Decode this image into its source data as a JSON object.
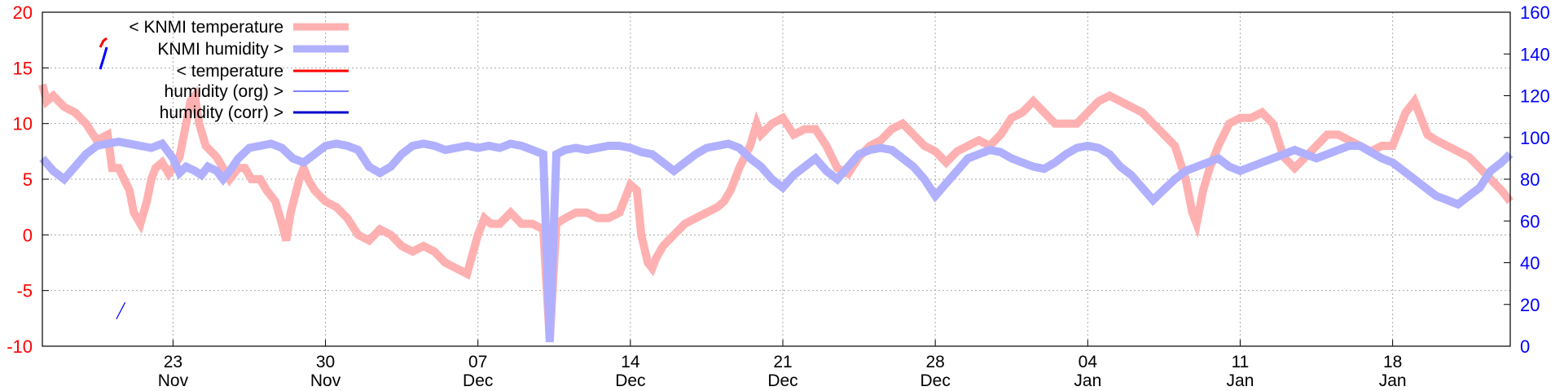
{
  "chart_data": {
    "type": "line",
    "title": "",
    "grid": true,
    "legend_placement": "top-left",
    "y_left": {
      "min": -10,
      "max": 20,
      "ticks": [
        -10,
        -5,
        0,
        5,
        10,
        15,
        20
      ],
      "color": "#ff0000"
    },
    "y_right": {
      "min": 0,
      "max": 160,
      "ticks": [
        0,
        20,
        40,
        60,
        80,
        100,
        120,
        140,
        160
      ],
      "color": "#0000ff"
    },
    "x_range_days": [
      -5,
      62.4
    ],
    "x_ticks": [
      {
        "day": 1,
        "date": "23",
        "month": "Nov"
      },
      {
        "day": 8,
        "date": "30",
        "month": "Nov"
      },
      {
        "day": 15,
        "date": "07",
        "month": "Dec"
      },
      {
        "day": 22,
        "date": "14",
        "month": "Dec"
      },
      {
        "day": 29,
        "date": "21",
        "month": "Dec"
      },
      {
        "day": 36,
        "date": "28",
        "month": "Dec"
      },
      {
        "day": 43,
        "date": "04",
        "month": "Jan"
      },
      {
        "day": 50,
        "date": "11",
        "month": "Jan"
      },
      {
        "day": 57,
        "date": "18",
        "month": "Jan"
      }
    ],
    "legend": [
      {
        "label": "< KNMI temperature",
        "color": "#ffb0b0",
        "width": 9
      },
      {
        "label": "KNMI humidity >",
        "color": "#b0b0ff",
        "width": 9
      },
      {
        "label": "< temperature",
        "color": "#ff0000",
        "width": 3
      },
      {
        "label": "humidity (org) >",
        "color": "#0000ff",
        "width": 1
      },
      {
        "label": "humidity (corr) >",
        "color": "#0000cc",
        "width": 3
      }
    ],
    "series": [
      {
        "name": "< KNMI temperature",
        "axis": "left",
        "color": "#ffb0b0",
        "points": [
          [
            -5,
            13.5
          ],
          [
            -4.8,
            12
          ],
          [
            -4.5,
            12.5
          ],
          [
            -4,
            11.5
          ],
          [
            -3.5,
            11
          ],
          [
            -3,
            10
          ],
          [
            -2.5,
            8.5
          ],
          [
            -2,
            9
          ],
          [
            -1.8,
            6
          ],
          [
            -1.5,
            6
          ],
          [
            -1,
            4
          ],
          [
            -0.8,
            2
          ],
          [
            -0.5,
            1
          ],
          [
            -0.2,
            3
          ],
          [
            0,
            5
          ],
          [
            0.2,
            6
          ],
          [
            0.5,
            6.5
          ],
          [
            0.8,
            5.5
          ],
          [
            1,
            6
          ],
          [
            1.3,
            7
          ],
          [
            1.6,
            10
          ],
          [
            1.8,
            12
          ],
          [
            2,
            12.5
          ],
          [
            2.2,
            10
          ],
          [
            2.5,
            8
          ],
          [
            3,
            7
          ],
          [
            3.3,
            6
          ],
          [
            3.6,
            5
          ],
          [
            4,
            6
          ],
          [
            4.3,
            6
          ],
          [
            4.6,
            5
          ],
          [
            5,
            5
          ],
          [
            5.3,
            4
          ],
          [
            5.7,
            3
          ],
          [
            6,
            1
          ],
          [
            6.2,
            -0.5
          ],
          [
            6.4,
            2
          ],
          [
            6.8,
            5
          ],
          [
            7,
            6
          ],
          [
            7.2,
            5
          ],
          [
            7.5,
            4
          ],
          [
            8,
            3
          ],
          [
            8.5,
            2.5
          ],
          [
            9,
            1.5
          ],
          [
            9.5,
            0
          ],
          [
            10,
            -0.5
          ],
          [
            10.5,
            0.5
          ],
          [
            11,
            0
          ],
          [
            11.5,
            -1
          ],
          [
            12,
            -1.5
          ],
          [
            12.5,
            -1
          ],
          [
            13,
            -1.5
          ],
          [
            13.5,
            -2.5
          ],
          [
            14,
            -3
          ],
          [
            14.5,
            -3.5
          ],
          [
            15,
            0
          ],
          [
            15.3,
            1.5
          ],
          [
            15.6,
            1
          ],
          [
            16,
            1
          ],
          [
            16.5,
            2
          ],
          [
            17,
            1
          ],
          [
            17.5,
            1
          ],
          [
            18,
            0.5
          ],
          [
            18.3,
            -9.5
          ],
          [
            18.6,
            1
          ],
          [
            19,
            1.5
          ],
          [
            19.5,
            2
          ],
          [
            20,
            2
          ],
          [
            20.5,
            1.5
          ],
          [
            21,
            1.5
          ],
          [
            21.5,
            2
          ],
          [
            21.8,
            3.5
          ],
          [
            22,
            4.5
          ],
          [
            22.3,
            4
          ],
          [
            22.5,
            0
          ],
          [
            22.8,
            -2.5
          ],
          [
            23,
            -3
          ],
          [
            23.2,
            -2
          ],
          [
            23.5,
            -1
          ],
          [
            24,
            0
          ],
          [
            24.5,
            1
          ],
          [
            25,
            1.5
          ],
          [
            25.5,
            2
          ],
          [
            26,
            2.5
          ],
          [
            26.3,
            3
          ],
          [
            26.6,
            4
          ],
          [
            27,
            6
          ],
          [
            27.5,
            8
          ],
          [
            27.8,
            10
          ],
          [
            28,
            9
          ],
          [
            28.5,
            10
          ],
          [
            29,
            10.5
          ],
          [
            29.5,
            9
          ],
          [
            30,
            9.5
          ],
          [
            30.5,
            9.5
          ],
          [
            31,
            8
          ],
          [
            31.5,
            6
          ],
          [
            32,
            5.5
          ],
          [
            32.5,
            7
          ],
          [
            33,
            8
          ],
          [
            33.5,
            8.5
          ],
          [
            34,
            9.5
          ],
          [
            34.5,
            10
          ],
          [
            35,
            9
          ],
          [
            35.5,
            8
          ],
          [
            36,
            7.5
          ],
          [
            36.5,
            6.5
          ],
          [
            37,
            7.5
          ],
          [
            37.5,
            8
          ],
          [
            38,
            8.5
          ],
          [
            38.5,
            8
          ],
          [
            39,
            9
          ],
          [
            39.5,
            10.5
          ],
          [
            40,
            11
          ],
          [
            40.5,
            12
          ],
          [
            41,
            11
          ],
          [
            41.5,
            10
          ],
          [
            42,
            10
          ],
          [
            42.5,
            10
          ],
          [
            43,
            11
          ],
          [
            43.5,
            12
          ],
          [
            44,
            12.5
          ],
          [
            44.5,
            12
          ],
          [
            45,
            11.5
          ],
          [
            45.5,
            11
          ],
          [
            46,
            10
          ],
          [
            46.5,
            9
          ],
          [
            47,
            8
          ],
          [
            47.5,
            5
          ],
          [
            47.8,
            2
          ],
          [
            48,
            1
          ],
          [
            48.3,
            4
          ],
          [
            48.6,
            6
          ],
          [
            49,
            8
          ],
          [
            49.5,
            10
          ],
          [
            50,
            10.5
          ],
          [
            50.5,
            10.5
          ],
          [
            51,
            11
          ],
          [
            51.5,
            10
          ],
          [
            52,
            7
          ],
          [
            52.5,
            6
          ],
          [
            53,
            7
          ],
          [
            53.5,
            8
          ],
          [
            54,
            9
          ],
          [
            54.5,
            9
          ],
          [
            55,
            8.5
          ],
          [
            55.5,
            8
          ],
          [
            56,
            7.5
          ],
          [
            56.5,
            8
          ],
          [
            57,
            8
          ],
          [
            57.3,
            9.5
          ],
          [
            57.6,
            11
          ],
          [
            58,
            12
          ],
          [
            58.3,
            10.5
          ],
          [
            58.6,
            9
          ],
          [
            59,
            8.5
          ],
          [
            59.5,
            8
          ],
          [
            60,
            7.5
          ],
          [
            60.5,
            7
          ],
          [
            61,
            6
          ],
          [
            61.5,
            5
          ],
          [
            62,
            4
          ],
          [
            62.4,
            3
          ]
        ]
      },
      {
        "name": "KNMI humidity >",
        "axis": "right",
        "color": "#b0b0ff",
        "points": [
          [
            -5,
            90
          ],
          [
            -4.5,
            84
          ],
          [
            -4,
            80
          ],
          [
            -3.5,
            86
          ],
          [
            -3,
            92
          ],
          [
            -2.5,
            96
          ],
          [
            -2,
            97
          ],
          [
            -1.5,
            98
          ],
          [
            -1,
            97
          ],
          [
            -0.5,
            96
          ],
          [
            0,
            95
          ],
          [
            0.5,
            97
          ],
          [
            1,
            90
          ],
          [
            1.3,
            83
          ],
          [
            1.6,
            86
          ],
          [
            2,
            84
          ],
          [
            2.3,
            82
          ],
          [
            2.6,
            86
          ],
          [
            3,
            84
          ],
          [
            3.3,
            80
          ],
          [
            3.6,
            84
          ],
          [
            4,
            90
          ],
          [
            4.5,
            95
          ],
          [
            5,
            96
          ],
          [
            5.5,
            97
          ],
          [
            6,
            95
          ],
          [
            6.5,
            90
          ],
          [
            7,
            88
          ],
          [
            7.5,
            92
          ],
          [
            8,
            96
          ],
          [
            8.5,
            97
          ],
          [
            9,
            96
          ],
          [
            9.5,
            94
          ],
          [
            10,
            86
          ],
          [
            10.5,
            83
          ],
          [
            11,
            86
          ],
          [
            11.5,
            92
          ],
          [
            12,
            96
          ],
          [
            12.5,
            97
          ],
          [
            13,
            96
          ],
          [
            13.5,
            94
          ],
          [
            14,
            95
          ],
          [
            14.5,
            96
          ],
          [
            15,
            95
          ],
          [
            15.5,
            96
          ],
          [
            16,
            95
          ],
          [
            16.5,
            97
          ],
          [
            17,
            96
          ],
          [
            17.5,
            94
          ],
          [
            18,
            92
          ],
          [
            18.3,
            2
          ],
          [
            18.6,
            92
          ],
          [
            19,
            94
          ],
          [
            19.5,
            95
          ],
          [
            20,
            94
          ],
          [
            20.5,
            95
          ],
          [
            21,
            96
          ],
          [
            21.5,
            96
          ],
          [
            22,
            95
          ],
          [
            22.5,
            93
          ],
          [
            23,
            92
          ],
          [
            23.5,
            88
          ],
          [
            24,
            84
          ],
          [
            24.5,
            88
          ],
          [
            25,
            92
          ],
          [
            25.5,
            95
          ],
          [
            26,
            96
          ],
          [
            26.5,
            97
          ],
          [
            27,
            95
          ],
          [
            27.5,
            90
          ],
          [
            28,
            86
          ],
          [
            28.5,
            80
          ],
          [
            29,
            76
          ],
          [
            29.5,
            82
          ],
          [
            30,
            86
          ],
          [
            30.5,
            90
          ],
          [
            31,
            84
          ],
          [
            31.5,
            80
          ],
          [
            32,
            86
          ],
          [
            32.5,
            92
          ],
          [
            33,
            94
          ],
          [
            33.5,
            95
          ],
          [
            34,
            94
          ],
          [
            34.5,
            90
          ],
          [
            35,
            86
          ],
          [
            35.5,
            80
          ],
          [
            36,
            72
          ],
          [
            36.5,
            78
          ],
          [
            37,
            84
          ],
          [
            37.5,
            90
          ],
          [
            38,
            92
          ],
          [
            38.5,
            94
          ],
          [
            39,
            93
          ],
          [
            39.5,
            90
          ],
          [
            40,
            88
          ],
          [
            40.5,
            86
          ],
          [
            41,
            85
          ],
          [
            41.5,
            88
          ],
          [
            42,
            92
          ],
          [
            42.5,
            95
          ],
          [
            43,
            96
          ],
          [
            43.5,
            95
          ],
          [
            44,
            92
          ],
          [
            44.5,
            86
          ],
          [
            45,
            82
          ],
          [
            45.5,
            76
          ],
          [
            46,
            70
          ],
          [
            46.5,
            75
          ],
          [
            47,
            80
          ],
          [
            47.5,
            84
          ],
          [
            48,
            86
          ],
          [
            48.5,
            88
          ],
          [
            49,
            90
          ],
          [
            49.5,
            86
          ],
          [
            50,
            84
          ],
          [
            50.5,
            86
          ],
          [
            51,
            88
          ],
          [
            51.5,
            90
          ],
          [
            52,
            92
          ],
          [
            52.5,
            94
          ],
          [
            53,
            92
          ],
          [
            53.5,
            90
          ],
          [
            54,
            92
          ],
          [
            54.5,
            94
          ],
          [
            55,
            96
          ],
          [
            55.5,
            96
          ],
          [
            56,
            93
          ],
          [
            56.5,
            90
          ],
          [
            57,
            88
          ],
          [
            57.5,
            84
          ],
          [
            58,
            80
          ],
          [
            58.5,
            76
          ],
          [
            59,
            72
          ],
          [
            59.5,
            70
          ],
          [
            60,
            68
          ],
          [
            60.5,
            72
          ],
          [
            61,
            76
          ],
          [
            61.5,
            84
          ],
          [
            62,
            88
          ],
          [
            62.4,
            92
          ]
        ]
      },
      {
        "name": "humidity (org) >",
        "axis": "right",
        "color": "#0000ff",
        "points": [
          [
            -1.6,
            13
          ],
          [
            -1.2,
            21
          ]
        ]
      }
    ]
  }
}
